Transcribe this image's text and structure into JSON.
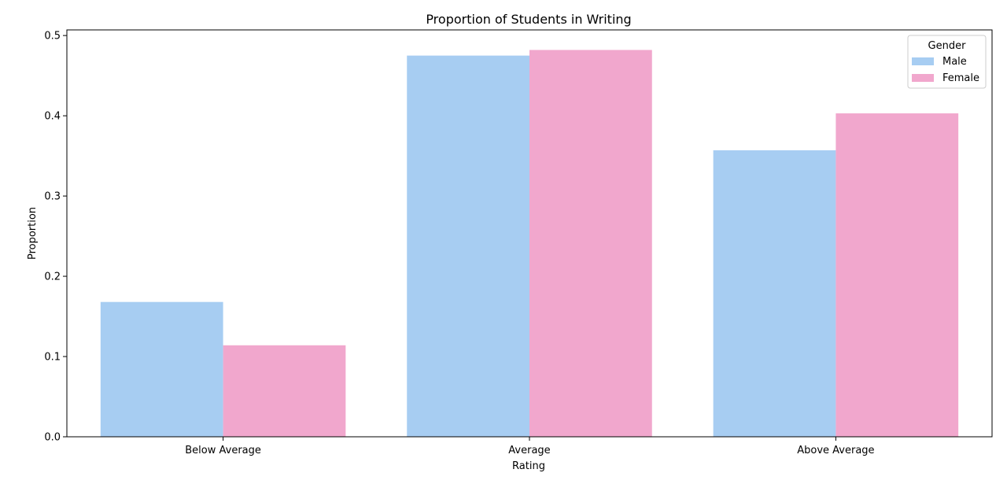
{
  "chart_data": {
    "type": "bar",
    "title": "Proportion of Students in Writing",
    "xlabel": "Rating",
    "ylabel": "Proportion",
    "categories": [
      "Below Average",
      "Average",
      "Above Average"
    ],
    "series": [
      {
        "name": "Male",
        "values": [
          0.168,
          0.475,
          0.357
        ],
        "color": "#a7cdf2"
      },
      {
        "name": "Female",
        "values": [
          0.114,
          0.482,
          0.403
        ],
        "color": "#f1a7cd"
      }
    ],
    "ylim": [
      0,
      0.507
    ],
    "yticks": [
      0.0,
      0.1,
      0.2,
      0.3,
      0.4,
      0.5
    ],
    "ytick_labels": [
      "0.0",
      "0.1",
      "0.2",
      "0.3",
      "0.4",
      "0.5"
    ],
    "grid": false,
    "legend": {
      "title": "Gender",
      "placement": "top-right"
    }
  }
}
